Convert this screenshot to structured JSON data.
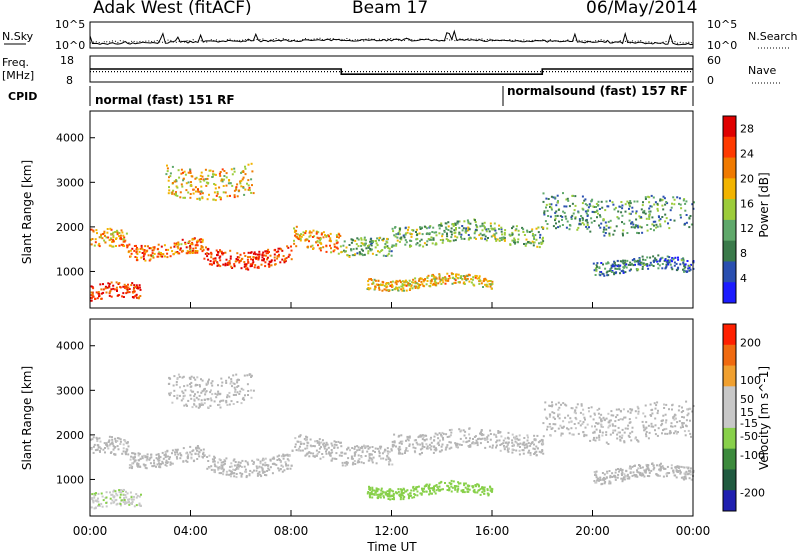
{
  "header": {
    "title": "Adak West (fitACF)",
    "beam": "Beam 17",
    "date": "06/May/2014"
  },
  "top_panel": {
    "left_label": "N.Sky",
    "left_ticks": [
      "10^5",
      "10^0"
    ],
    "right_label": "N.Search",
    "right_ticks": [
      "10^5",
      "10^0"
    ]
  },
  "freq_panel": {
    "left_label_1": "Freq.",
    "left_label_2": "[MHz]",
    "left_ticks": [
      "18",
      "8"
    ],
    "right_label": "Nave",
    "right_ticks": [
      "60",
      "0"
    ]
  },
  "cpid": {
    "label": "CPID",
    "program_1": "normal (fast) 151 RF",
    "program_2": "normalsound (fast) 157 RF"
  },
  "x_axis": {
    "label": "Time UT",
    "ticks": [
      "00:00",
      "04:00",
      "08:00",
      "12:00",
      "16:00",
      "20:00",
      "00:00"
    ]
  },
  "colors": {
    "power_scale": [
      "#1c1cff",
      "#2a4fb0",
      "#3a7a4a",
      "#5fa86a",
      "#9ccc3a",
      "#f2b400",
      "#f07a00",
      "#ff3a00",
      "#e00000"
    ],
    "velocity_scale": [
      "#2020b0",
      "#205a40",
      "#3c8a3c",
      "#88d04a",
      "#c8c8c8",
      "#c8c8c8",
      "#f0a030",
      "#f06a10",
      "#ff2000"
    ],
    "ground_scatter": "#b4b4b4"
  },
  "chart_data": [
    {
      "type": "line",
      "name": "noise-panel",
      "x_range_hours": [
        0,
        24
      ],
      "series": [
        {
          "name": "N.Sky",
          "style": "solid"
        },
        {
          "name": "N.Search",
          "style": "dotted"
        }
      ]
    },
    {
      "type": "line",
      "name": "frequency-panel",
      "series": [
        {
          "name": "Freq.",
          "style": "solid",
          "segments": [
            {
              "x0": 0,
              "x1": 10,
              "y": 13
            },
            {
              "x0": 10,
              "x1": 18,
              "y": 11
            },
            {
              "x0": 18,
              "x1": 24,
              "y": 13
            }
          ]
        },
        {
          "name": "Nave",
          "style": "dotted",
          "y": 12
        }
      ]
    },
    {
      "type": "heatmap",
      "name": "power",
      "ylabel": "Slant Range [km]",
      "xlabel": "",
      "ylim": [
        180,
        4600
      ],
      "yticks": [
        1000,
        2000,
        3000,
        4000
      ],
      "xlim": [
        0,
        24
      ],
      "colorbar": {
        "label": "Power [dB]",
        "ticks": [
          4,
          8,
          12,
          16,
          20,
          24,
          28
        ],
        "range": [
          0,
          30
        ]
      },
      "bands": [
        {
          "t0": 0.0,
          "t1": 2.0,
          "r0": 350,
          "r1": 700,
          "value": 26
        },
        {
          "t0": 0.0,
          "t1": 1.5,
          "r0": 1500,
          "r1": 1900,
          "value": 20
        },
        {
          "t0": 1.5,
          "t1": 4.5,
          "r0": 1350,
          "r1": 1700,
          "value": 22
        },
        {
          "t0": 4.5,
          "t1": 8.0,
          "r0": 1150,
          "r1": 1550,
          "value": 26
        },
        {
          "t0": 8.0,
          "t1": 10.0,
          "r0": 1500,
          "r1": 1950,
          "value": 20
        },
        {
          "t0": 3.0,
          "t1": 6.5,
          "r0": 2700,
          "r1": 3400,
          "value": 18
        },
        {
          "t0": 10.0,
          "t1": 12.0,
          "r0": 1300,
          "r1": 1700,
          "value": 12
        },
        {
          "t0": 12.0,
          "t1": 18.0,
          "r0": 1650,
          "r1": 2100,
          "value": 12
        },
        {
          "t0": 11.0,
          "t1": 16.0,
          "r0": 650,
          "r1": 900,
          "value": 18
        },
        {
          "t0": 18.0,
          "t1": 24.0,
          "r0": 1900,
          "r1": 2700,
          "value": 10
        },
        {
          "t0": 20.0,
          "t1": 24.0,
          "r0": 1000,
          "r1": 1300,
          "value": 8
        }
      ]
    },
    {
      "type": "heatmap",
      "name": "velocity",
      "ylabel": "Slant Range [km]",
      "xlabel": "Time UT",
      "ylim": [
        180,
        4600
      ],
      "yticks": [
        1000,
        2000,
        3000,
        4000
      ],
      "xlim": [
        0,
        24
      ],
      "colorbar": {
        "label": "Velocity [m s^-1]",
        "ticks": [
          200,
          100,
          50,
          15,
          -15,
          -50,
          -100,
          -200
        ],
        "range": [
          -250,
          250
        ]
      },
      "bands": [
        {
          "t0": 0.0,
          "t1": 2.0,
          "r0": 350,
          "r1": 700,
          "value": -20
        },
        {
          "t0": 0.0,
          "t1": 1.5,
          "r0": 1500,
          "r1": 1900,
          "value": 0
        },
        {
          "t0": 1.5,
          "t1": 4.5,
          "r0": 1350,
          "r1": 1700,
          "value": 0
        },
        {
          "t0": 4.5,
          "t1": 8.0,
          "r0": 1150,
          "r1": 1550,
          "value": 0
        },
        {
          "t0": 8.0,
          "t1": 10.0,
          "r0": 1500,
          "r1": 1950,
          "value": 0
        },
        {
          "t0": 3.0,
          "t1": 6.5,
          "r0": 2700,
          "r1": 3400,
          "value": 0
        },
        {
          "t0": 10.0,
          "t1": 12.0,
          "r0": 1300,
          "r1": 1700,
          "value": 0
        },
        {
          "t0": 12.0,
          "t1": 18.0,
          "r0": 1650,
          "r1": 2100,
          "value": 0
        },
        {
          "t0": 11.0,
          "t1": 16.0,
          "r0": 650,
          "r1": 900,
          "value": -60
        },
        {
          "t0": 18.0,
          "t1": 24.0,
          "r0": 1900,
          "r1": 2700,
          "value": 0
        },
        {
          "t0": 20.0,
          "t1": 24.0,
          "r0": 1000,
          "r1": 1300,
          "value": 0
        }
      ]
    }
  ]
}
